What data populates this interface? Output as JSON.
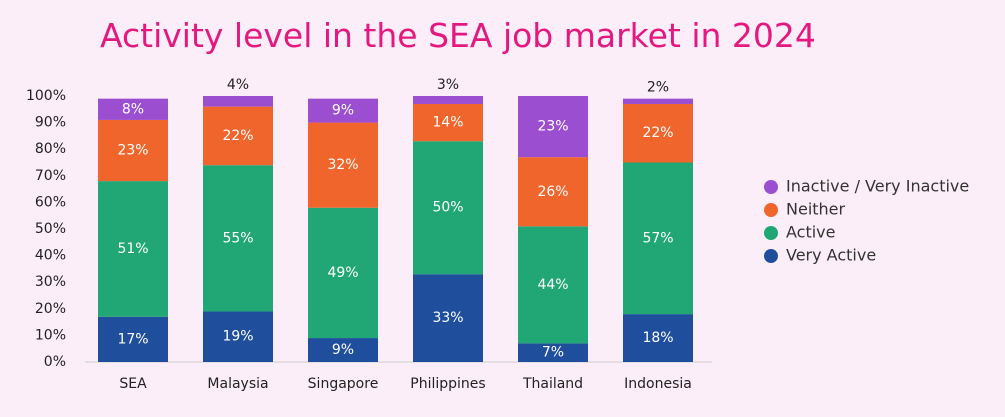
{
  "chart_data": {
    "type": "stacked_bar",
    "title": "Activity level in the SEA job market in 2024",
    "categories": [
      "SEA",
      "Malaysia",
      "Singapore",
      "Philippines",
      "Thailand",
      "Indonesia"
    ],
    "series": [
      {
        "name": "Very Active",
        "color": "#1f4e9c",
        "values": [
          17,
          19,
          9,
          33,
          7,
          18
        ],
        "value_labels": [
          "17%",
          "19%",
          "9%",
          "33%",
          "7%",
          "18%"
        ]
      },
      {
        "name": "Active",
        "color": "#21a675",
        "values": [
          51,
          55,
          49,
          50,
          44,
          57
        ],
        "value_labels": [
          "51%",
          "55%",
          "49%",
          "50%",
          "44%",
          "57%"
        ]
      },
      {
        "name": "Neither",
        "color": "#f0652b",
        "values": [
          23,
          22,
          32,
          14,
          26,
          22
        ],
        "value_labels": [
          "23%",
          "22%",
          "32%",
          "14%",
          "26%",
          "22%"
        ]
      },
      {
        "name": "Inactive / Very Inactive",
        "color": "#9b4fd0",
        "values": [
          8,
          4,
          9,
          3,
          23,
          2
        ],
        "value_labels": [
          "8%",
          "4%",
          "9%",
          "3%",
          "23%",
          "2%"
        ]
      }
    ],
    "ylim": [
      0,
      100
    ],
    "yticks": [
      {
        "value": 0,
        "label": "0%"
      },
      {
        "value": 10,
        "label": "10%"
      },
      {
        "value": 20,
        "label": "20%"
      },
      {
        "value": 30,
        "label": "30%"
      },
      {
        "value": 40,
        "label": "40%"
      },
      {
        "value": 50,
        "label": "50%"
      },
      {
        "value": 60,
        "label": "60%"
      },
      {
        "value": 70,
        "label": "70%"
      },
      {
        "value": 80,
        "label": "80%"
      },
      {
        "value": 90,
        "label": "90%"
      },
      {
        "value": 100,
        "label": "100%"
      }
    ],
    "legend": "right"
  }
}
